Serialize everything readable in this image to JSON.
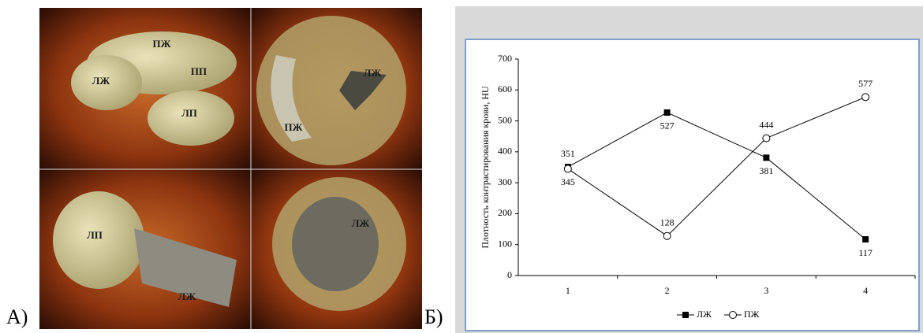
{
  "panel_labels": [
    "А)",
    "Б)"
  ],
  "image_labels": [
    "ПЖ",
    "ПП",
    "ЛЖ",
    "ЛП",
    "ЛЖ",
    "ПЖ",
    "ЛП",
    "ЛЖ",
    "ЛЖ"
  ],
  "chart_data": {
    "type": "line",
    "y_label": "Плотность контрастирования крови, HU",
    "categories": [
      "1",
      "2",
      "3",
      "4"
    ],
    "series": [
      {
        "name": "ЛЖ",
        "color": "#000000",
        "marker": "filled-square",
        "values": [
          351,
          527,
          381,
          117
        ]
      },
      {
        "name": "ПЖ",
        "color": "#000000",
        "marker": "open-circle",
        "values": [
          345,
          128,
          444,
          577
        ]
      }
    ],
    "ylim": [
      0,
      700
    ],
    "yticks": [
      0,
      100,
      200,
      300,
      400,
      500,
      600,
      700
    ],
    "legend": "bottom"
  }
}
